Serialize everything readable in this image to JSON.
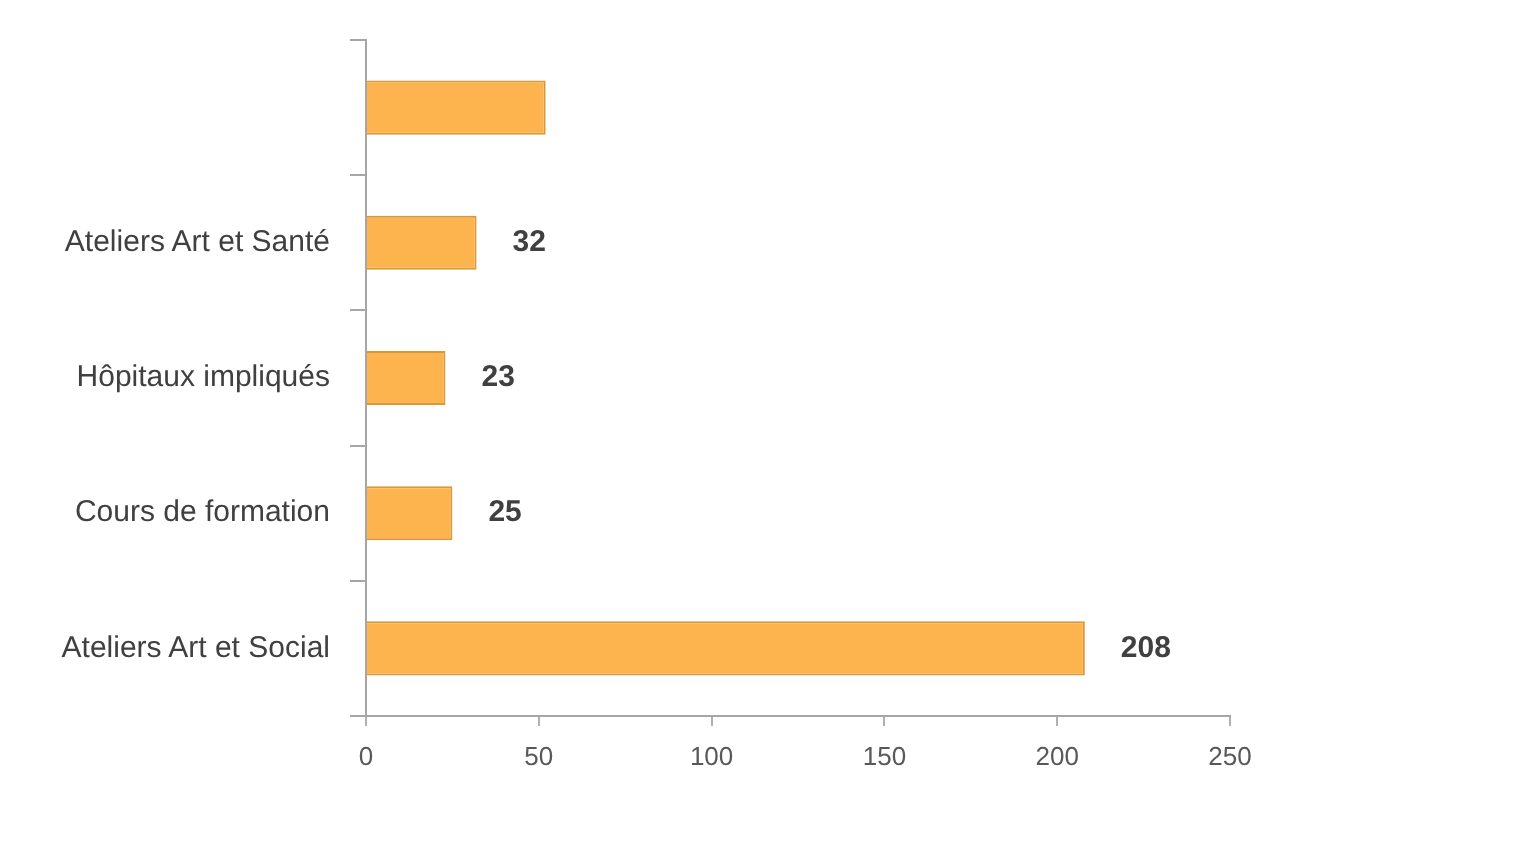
{
  "chart_data": {
    "type": "bar",
    "orientation": "horizontal",
    "categories": [
      null,
      "Ateliers Art et Santé",
      "Hôpitaux impliqués",
      "Cours de formation",
      "Ateliers Art et Social"
    ],
    "values": [
      52,
      32,
      23,
      25,
      208
    ],
    "value_labels": [
      null,
      "32",
      "23",
      "25",
      "208"
    ],
    "color": "#fdb44e",
    "xlim": [
      0,
      250
    ],
    "xticks": [
      0,
      50,
      100,
      150,
      200,
      250
    ]
  }
}
